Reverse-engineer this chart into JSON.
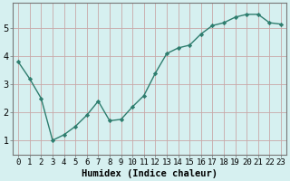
{
  "x": [
    0,
    1,
    2,
    3,
    4,
    5,
    6,
    7,
    8,
    9,
    10,
    11,
    12,
    13,
    14,
    15,
    16,
    17,
    18,
    19,
    20,
    21,
    22,
    23
  ],
  "y": [
    3.8,
    3.2,
    2.5,
    1.0,
    1.2,
    1.5,
    1.9,
    2.4,
    1.7,
    1.75,
    2.2,
    2.6,
    3.4,
    4.1,
    4.3,
    4.4,
    4.8,
    5.1,
    5.2,
    5.4,
    5.5,
    5.5,
    5.2,
    5.15
  ],
  "line_color": "#2e7d6e",
  "marker": "D",
  "marker_size": 2.2,
  "line_width": 1.0,
  "bg_color": "#d6f0f0",
  "grid_color": "#c8a8a8",
  "xlabel": "Humidex (Indice chaleur)",
  "xlabel_fontsize": 7.5,
  "xlabel_fontweight": "bold",
  "yticks": [
    1,
    2,
    3,
    4,
    5
  ],
  "ylim": [
    0.5,
    5.9
  ],
  "xlim": [
    -0.5,
    23.5
  ],
  "tick_fontsize": 6.5
}
